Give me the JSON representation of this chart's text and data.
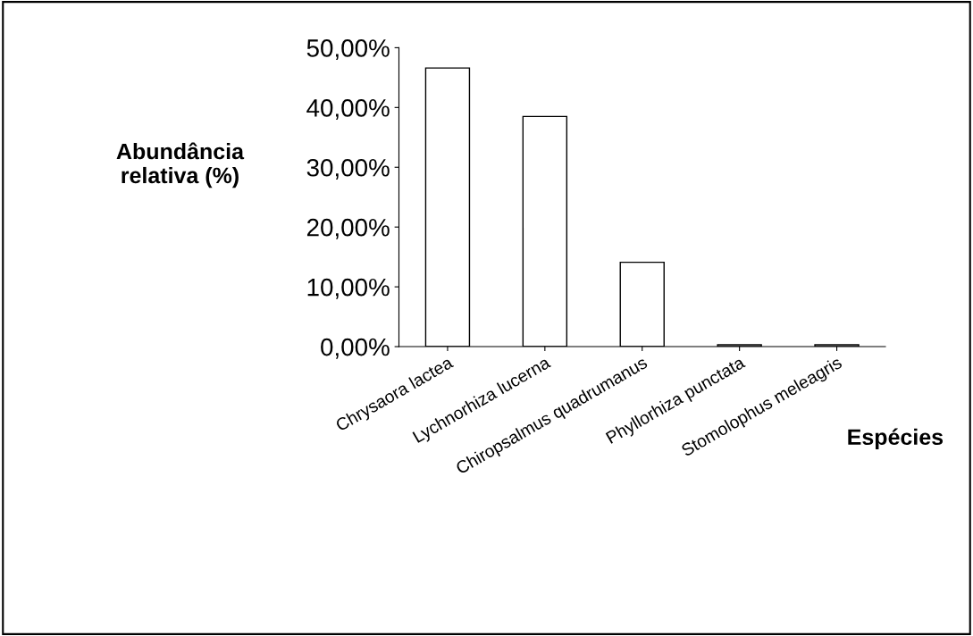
{
  "chart_data": {
    "type": "bar",
    "xlabel": "Espécies",
    "ylabel": "Abundância\nrelativa (%)",
    "categories": [
      "Chrysaora lactea",
      "Lychnorhiza lucerna",
      "Chiropsalmus quadrumanus",
      "Phyllorhiza punctata",
      "Stomolophus meleagris"
    ],
    "values": [
      46.6,
      38.5,
      14.1,
      0.3,
      0.3
    ],
    "color": "#ffffff",
    "ylim": [
      0,
      50
    ],
    "yticks": [
      {
        "value": 0,
        "label": "0,00%"
      },
      {
        "value": 10,
        "label": "10,00%"
      },
      {
        "value": 20,
        "label": "20,00%"
      },
      {
        "value": 30,
        "label": "30,00%"
      },
      {
        "value": 40,
        "label": "40,00%"
      },
      {
        "value": 50,
        "label": "50,00%"
      }
    ],
    "grid": false,
    "legend": false
  }
}
